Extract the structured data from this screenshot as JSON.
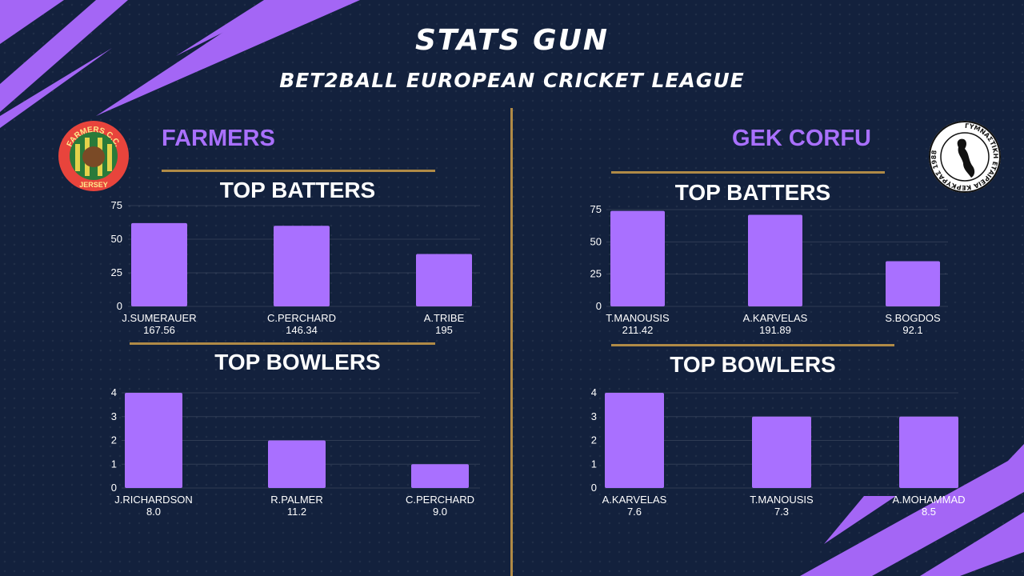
{
  "header": {
    "title": "STATS GUN",
    "subtitle": "BET2BALL EUROPEAN CRICKET LEAGUE"
  },
  "colors": {
    "background": "#13213d",
    "accent": "#a970ff",
    "gold": "#b08a46"
  },
  "teams": [
    {
      "name": "FARMERS",
      "logo": {
        "top": "FARMERS C.C.",
        "bottom": "JERSEY"
      },
      "batters_title": "TOP BATTERS",
      "bowlers_title": "TOP BOWLERS"
    },
    {
      "name": "GEK CORFU",
      "logo": {
        "text": "ΓΥΜΝΑΣΤΙΚΗ ΕΤΑΙΡΕΙΑ ΚΕΡΚΥΡΑΣ 1988"
      },
      "batters_title": "TOP BATTERS",
      "bowlers_title": "TOP BOWLERS"
    }
  ],
  "chart_data": [
    {
      "type": "bar",
      "team": "FARMERS",
      "metric": "TOP BATTERS",
      "categories": [
        "J.SUMERAUER",
        "C.PERCHARD",
        "A.TRIBE"
      ],
      "sublabels": [
        "167.56",
        "146.34",
        "195"
      ],
      "values": [
        62,
        60,
        39
      ],
      "ylim": [
        0,
        75
      ],
      "yticks": [
        0,
        25,
        50,
        75
      ],
      "grid": true
    },
    {
      "type": "bar",
      "team": "FARMERS",
      "metric": "TOP BOWLERS",
      "categories": [
        "J.RICHARDSON",
        "R.PALMER",
        "C.PERCHARD"
      ],
      "sublabels": [
        "8.0",
        "11.2",
        "9.0"
      ],
      "values": [
        4,
        2,
        1
      ],
      "ylim": [
        0,
        4
      ],
      "yticks": [
        0,
        1,
        2,
        3,
        4
      ],
      "grid": true
    },
    {
      "type": "bar",
      "team": "GEK CORFU",
      "metric": "TOP BATTERS",
      "categories": [
        "T.MANOUSIS",
        "A.KARVELAS",
        "S.BOGDOS"
      ],
      "sublabels": [
        "211.42",
        "191.89",
        "92.1"
      ],
      "values": [
        74,
        71,
        35
      ],
      "ylim": [
        0,
        75
      ],
      "yticks": [
        0,
        25,
        50,
        75
      ],
      "grid": true
    },
    {
      "type": "bar",
      "team": "GEK CORFU",
      "metric": "TOP BOWLERS",
      "categories": [
        "A.KARVELAS",
        "T.MANOUSIS",
        "A.MOHAMMAD"
      ],
      "sublabels": [
        "7.6",
        "7.3",
        "8.5"
      ],
      "values": [
        4,
        3,
        3
      ],
      "ylim": [
        0,
        4
      ],
      "yticks": [
        0,
        1,
        2,
        3,
        4
      ],
      "grid": true
    }
  ]
}
